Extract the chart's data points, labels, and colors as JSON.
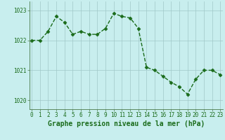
{
  "x": [
    0,
    1,
    2,
    3,
    4,
    5,
    6,
    7,
    8,
    9,
    10,
    11,
    12,
    13,
    14,
    15,
    16,
    17,
    18,
    19,
    20,
    21,
    22,
    23
  ],
  "y": [
    1022.0,
    1022.0,
    1022.3,
    1022.8,
    1022.6,
    1022.2,
    1022.3,
    1022.2,
    1022.2,
    1022.4,
    1022.9,
    1022.8,
    1022.75,
    1022.4,
    1021.1,
    1021.0,
    1020.8,
    1020.6,
    1020.45,
    1020.2,
    1020.7,
    1021.0,
    1021.0,
    1020.85
  ],
  "line_color": "#1a6b1a",
  "marker": "D",
  "marker_size": 2.5,
  "bg_color": "#c8eeee",
  "grid_color": "#a0c8c8",
  "xlabel": "Graphe pression niveau de la mer (hPa)",
  "xlabel_fontsize": 7,
  "xlabel_fontweight": "bold",
  "yticks": [
    1020,
    1021,
    1022,
    1023
  ],
  "xticks": [
    0,
    1,
    2,
    3,
    4,
    5,
    6,
    7,
    8,
    9,
    10,
    11,
    12,
    13,
    14,
    15,
    16,
    17,
    18,
    19,
    20,
    21,
    22,
    23
  ],
  "ylim": [
    1019.7,
    1023.3
  ],
  "xlim": [
    -0.3,
    23.3
  ],
  "tick_fontsize": 5.5,
  "tick_color": "#1a6b1a",
  "axis_color": "#4a7a4a",
  "linewidth": 1.0,
  "grid_linewidth": 0.5
}
